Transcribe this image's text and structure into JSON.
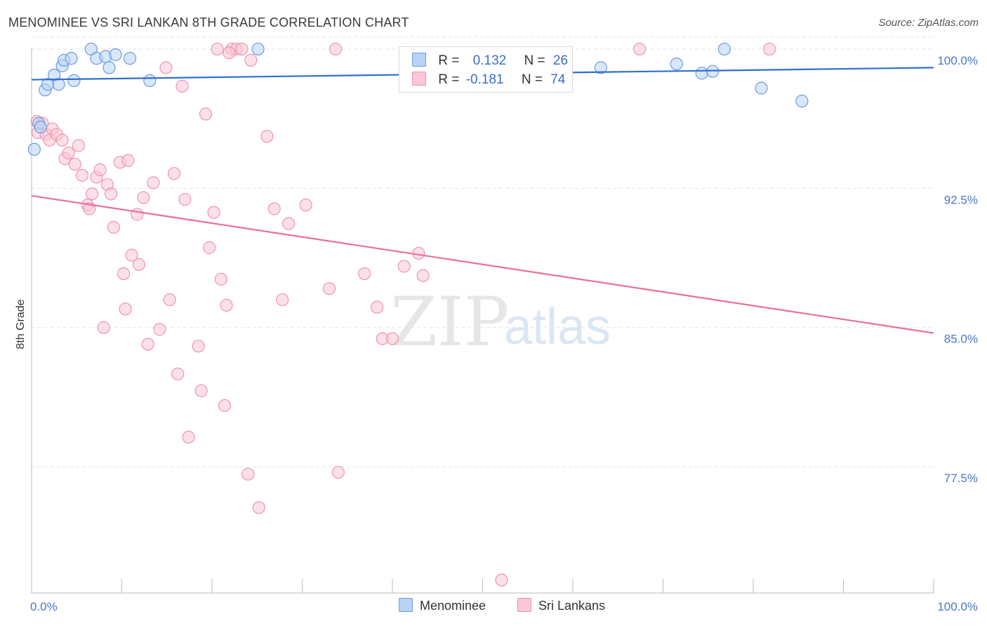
{
  "title": "MENOMINEE VS SRI LANKAN 8TH GRADE CORRELATION CHART",
  "source": "Source: ZipAtlas.com",
  "watermark": {
    "zip": "ZIP",
    "atlas": "atlas"
  },
  "colors": {
    "blue_fill": "#b9d3f5",
    "blue_stroke": "#6b9be0",
    "blue_line": "#2f6fd0",
    "pink_fill": "#f9c7d6",
    "pink_stroke": "#ee94ae",
    "pink_line": "#e8709a",
    "grid": "#e4e4e4",
    "axis_label": "#4a78c8"
  },
  "legend_stats": [
    {
      "r_label": "R =",
      "r_value": "0.132",
      "n_label": "N =",
      "n_value": "26"
    },
    {
      "r_label": "R =",
      "r_value": "-0.181",
      "n_label": "N =",
      "n_value": "74"
    }
  ],
  "bottom_legend": [
    "Menominee",
    "Sri Lankans"
  ],
  "chart_data": {
    "type": "scatter",
    "title": "MENOMINEE VS SRI LANKAN 8TH GRADE CORRELATION CHART",
    "xlabel": "",
    "ylabel": "8th Grade",
    "xlim": [
      0,
      100
    ],
    "ylim": [
      70.7,
      100.3
    ],
    "x_tick_labels": [
      "0.0%",
      "100.0%"
    ],
    "y_ticks": [
      77.5,
      85.0,
      92.5,
      100.0
    ],
    "y_tick_labels": [
      "77.5%",
      "85.0%",
      "92.5%",
      "100.0%"
    ],
    "grid": true,
    "series": [
      {
        "name": "Menominee",
        "r": 0.132,
        "n": 26,
        "trend": {
          "x": [
            0,
            100
          ],
          "y": [
            98.35,
            99.0
          ]
        },
        "points": [
          [
            0.3,
            94.6
          ],
          [
            0.8,
            96.0
          ],
          [
            1.0,
            95.8
          ],
          [
            1.5,
            97.8
          ],
          [
            1.8,
            98.1
          ],
          [
            2.5,
            98.6
          ],
          [
            3.0,
            98.1
          ],
          [
            3.4,
            99.1
          ],
          [
            3.6,
            99.4
          ],
          [
            4.4,
            99.5
          ],
          [
            4.7,
            98.3
          ],
          [
            6.6,
            100.0
          ],
          [
            7.2,
            99.5
          ],
          [
            8.2,
            99.6
          ],
          [
            8.6,
            99.0
          ],
          [
            9.3,
            99.7
          ],
          [
            10.9,
            99.5
          ],
          [
            13.1,
            98.3
          ],
          [
            25.1,
            100.0
          ],
          [
            63.1,
            99.0
          ],
          [
            71.5,
            99.2
          ],
          [
            74.3,
            98.7
          ],
          [
            75.5,
            98.8
          ],
          [
            76.8,
            100.0
          ],
          [
            80.9,
            97.9
          ],
          [
            85.4,
            97.2
          ]
        ]
      },
      {
        "name": "Sri Lankans",
        "r": -0.181,
        "n": 74,
        "trend": {
          "x": [
            0,
            100
          ],
          "y": [
            92.1,
            84.7
          ]
        },
        "points": [
          [
            0.6,
            96.1
          ],
          [
            0.7,
            95.5
          ],
          [
            1.2,
            96.0
          ],
          [
            1.6,
            95.4
          ],
          [
            2.0,
            95.1
          ],
          [
            2.3,
            95.7
          ],
          [
            2.8,
            95.4
          ],
          [
            3.4,
            95.1
          ],
          [
            3.7,
            94.1
          ],
          [
            4.1,
            94.4
          ],
          [
            4.8,
            93.8
          ],
          [
            5.2,
            94.8
          ],
          [
            5.6,
            93.2
          ],
          [
            6.2,
            91.6
          ],
          [
            6.4,
            91.4
          ],
          [
            6.7,
            92.2
          ],
          [
            7.2,
            93.1
          ],
          [
            7.6,
            93.5
          ],
          [
            8.4,
            92.7
          ],
          [
            8.8,
            92.2
          ],
          [
            9.1,
            90.4
          ],
          [
            9.8,
            93.9
          ],
          [
            10.2,
            87.9
          ],
          [
            10.4,
            86.0
          ],
          [
            10.7,
            94.0
          ],
          [
            11.1,
            88.9
          ],
          [
            11.7,
            91.1
          ],
          [
            11.9,
            88.4
          ],
          [
            12.4,
            92.0
          ],
          [
            12.9,
            84.1
          ],
          [
            13.5,
            92.8
          ],
          [
            14.2,
            84.9
          ],
          [
            14.9,
            99.0
          ],
          [
            15.3,
            86.5
          ],
          [
            15.8,
            93.3
          ],
          [
            16.2,
            82.5
          ],
          [
            16.7,
            98.0
          ],
          [
            17.0,
            91.9
          ],
          [
            17.4,
            79.1
          ],
          [
            18.5,
            84.0
          ],
          [
            18.8,
            81.6
          ],
          [
            19.3,
            96.5
          ],
          [
            19.7,
            89.3
          ],
          [
            20.2,
            91.2
          ],
          [
            20.6,
            100.0
          ],
          [
            21.0,
            87.6
          ],
          [
            21.4,
            80.8
          ],
          [
            21.6,
            86.2
          ],
          [
            22.2,
            100.0
          ],
          [
            22.7,
            100.0
          ],
          [
            23.3,
            100.0
          ],
          [
            24.0,
            77.1
          ],
          [
            24.3,
            99.4
          ],
          [
            25.2,
            75.3
          ],
          [
            26.1,
            95.3
          ],
          [
            26.9,
            91.4
          ],
          [
            27.8,
            86.5
          ],
          [
            28.5,
            90.6
          ],
          [
            30.4,
            91.6
          ],
          [
            33.0,
            87.1
          ],
          [
            33.7,
            100.0
          ],
          [
            34.0,
            77.2
          ],
          [
            36.9,
            87.9
          ],
          [
            38.3,
            86.1
          ],
          [
            38.9,
            84.4
          ],
          [
            40.0,
            84.4
          ],
          [
            41.3,
            88.3
          ],
          [
            42.9,
            89.0
          ],
          [
            43.4,
            87.8
          ],
          [
            52.1,
            71.4
          ],
          [
            67.4,
            100.0
          ],
          [
            81.8,
            100.0
          ],
          [
            21.9,
            99.8
          ],
          [
            8.0,
            85.0
          ]
        ]
      }
    ]
  }
}
